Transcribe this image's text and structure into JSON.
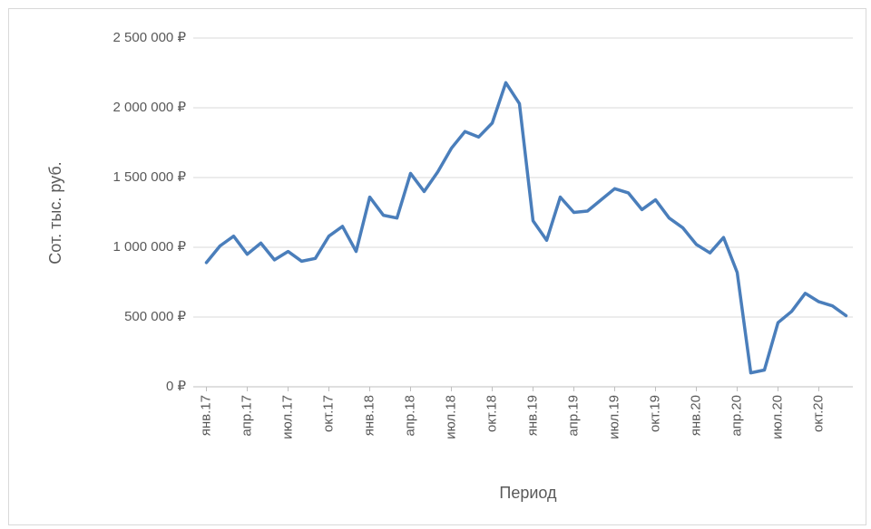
{
  "chart_data": {
    "type": "line",
    "x_label": "Период",
    "y_label": "Сот. тыс. руб.",
    "categories": [
      "янв.17",
      null,
      null,
      "апр.17",
      null,
      null,
      "июл.17",
      null,
      null,
      "окт.17",
      null,
      null,
      "янв.18",
      null,
      null,
      "апр.18",
      null,
      null,
      "июл.18",
      null,
      null,
      "окт.18",
      null,
      null,
      "янв.19",
      null,
      null,
      "апр.19",
      null,
      null,
      "июл.19",
      null,
      null,
      "окт.19",
      null,
      null,
      "янв.20",
      null,
      null,
      "апр.20",
      null,
      null,
      "июл.20",
      null,
      null,
      "окт.20",
      null,
      null
    ],
    "series": [
      {
        "name": "Сот. тыс. руб.",
        "color": "#4a7ebb",
        "values": [
          890000,
          1010000,
          1080000,
          950000,
          1030000,
          910000,
          970000,
          900000,
          920000,
          1080000,
          1150000,
          970000,
          1360000,
          1230000,
          1210000,
          1530000,
          1400000,
          1540000,
          1710000,
          1830000,
          1790000,
          1890000,
          2180000,
          2030000,
          1190000,
          1050000,
          1360000,
          1250000,
          1260000,
          1340000,
          1420000,
          1390000,
          1270000,
          1340000,
          1210000,
          1140000,
          1020000,
          960000,
          1070000,
          820000,
          100000,
          120000,
          460000,
          540000,
          670000,
          610000,
          580000,
          510000
        ]
      }
    ],
    "ylim": [
      0,
      2500000
    ],
    "yticks": [
      {
        "value": 0,
        "label": "0 ₽"
      },
      {
        "value": 500000,
        "label": "500 000 ₽"
      },
      {
        "value": 1000000,
        "label": "1 000 000 ₽"
      },
      {
        "value": 1500000,
        "label": "1 500 000 ₽"
      },
      {
        "value": 2000000,
        "label": "2 000 000 ₽"
      },
      {
        "value": 2500000,
        "label": "2 500 000 ₽"
      }
    ],
    "grid": true
  }
}
